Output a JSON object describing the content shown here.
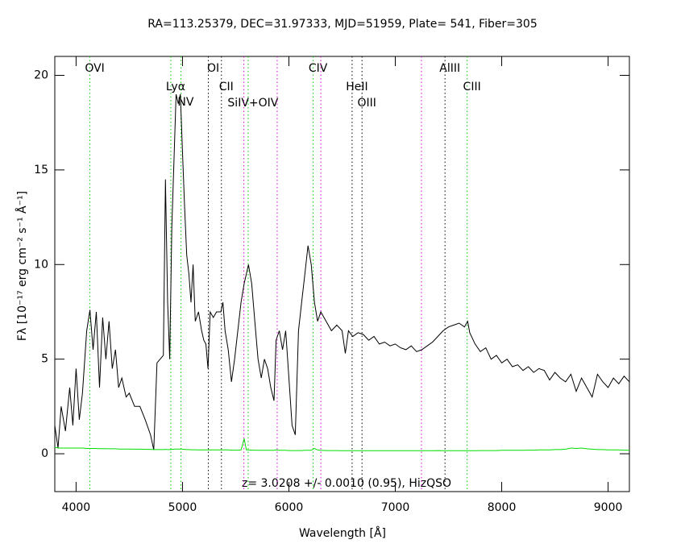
{
  "chart_data": {
    "type": "line",
    "title": "RA=113.25379, DEC=31.97333, MJD=51959, Plate=  541, Fiber=305",
    "annotation": "z=  3.0208 +/-  0.0010 (0.95), HizQSO",
    "xlabel": "Wavelength [Å]",
    "ylabel": "Fλ [10⁻¹⁷ erg cm⁻² s⁻¹ Å⁻¹]",
    "xlim": [
      3800,
      9200
    ],
    "ylim": [
      -2,
      21
    ],
    "xticks": [
      4000,
      5000,
      6000,
      7000,
      8000,
      9000
    ],
    "yticks": [
      0,
      5,
      10,
      15,
      20
    ],
    "lines": [
      {
        "label": "OVI",
        "wavelength": 4130,
        "color": "#00cc00"
      },
      {
        "label": "Lyα",
        "wavelength": 4890,
        "color": "#00cc00"
      },
      {
        "label": "NV",
        "wavelength": 4985,
        "color": "#00cc00"
      },
      {
        "label": "OI",
        "wavelength": 5243,
        "color": "#000000"
      },
      {
        "label": "CII",
        "wavelength": 5366,
        "color": "#000000"
      },
      {
        "label": "SiIV+OIV",
        "wavelength": 5617,
        "color": "#00cc00"
      },
      {
        "label": "CIV",
        "wavelength": 6228,
        "color": "#00cc00"
      },
      {
        "label": "HeII",
        "wavelength": 6594,
        "color": "#000000"
      },
      {
        "label": "OIII",
        "wavelength": 6687,
        "color": "#000000"
      },
      {
        "label": "AlIII",
        "wavelength": 7467,
        "color": "#000000"
      },
      {
        "label": "CIII",
        "wavelength": 7675,
        "color": "#00cc00"
      }
    ],
    "sky_lines": [
      5577,
      5890,
      6300,
      7246
    ],
    "sky_color": "#dd00dd",
    "x": [
      3800,
      3830,
      3860,
      3900,
      3940,
      3970,
      4000,
      4030,
      4060,
      4100,
      4130,
      4160,
      4190,
      4220,
      4250,
      4280,
      4310,
      4340,
      4370,
      4400,
      4430,
      4470,
      4500,
      4550,
      4600,
      4650,
      4700,
      4730,
      4760,
      4790,
      4820,
      4840,
      4860,
      4880,
      4900,
      4920,
      4940,
      4960,
      4980,
      5000,
      5020,
      5040,
      5060,
      5080,
      5100,
      5120,
      5150,
      5180,
      5200,
      5220,
      5240,
      5260,
      5290,
      5320,
      5360,
      5380,
      5400,
      5430,
      5460,
      5490,
      5520,
      5550,
      5580,
      5600,
      5620,
      5650,
      5680,
      5710,
      5740,
      5770,
      5800,
      5830,
      5860,
      5880,
      5910,
      5940,
      5970,
      6000,
      6030,
      6060,
      6090,
      6120,
      6150,
      6180,
      6210,
      6240,
      6270,
      6300,
      6350,
      6400,
      6450,
      6500,
      6530,
      6560,
      6600,
      6650,
      6700,
      6750,
      6800,
      6850,
      6900,
      6950,
      7000,
      7050,
      7100,
      7150,
      7200,
      7250,
      7300,
      7350,
      7400,
      7450,
      7500,
      7550,
      7600,
      7650,
      7680,
      7700,
      7750,
      7800,
      7850,
      7900,
      7950,
      8000,
      8050,
      8100,
      8150,
      8200,
      8250,
      8300,
      8350,
      8400,
      8450,
      8500,
      8550,
      8600,
      8650,
      8700,
      8750,
      8800,
      8850,
      8900,
      8950,
      9000,
      9050,
      9100,
      9150,
      9200
    ],
    "series": [
      {
        "color": "#000000",
        "values": [
          1.5,
          0.3,
          2.5,
          1.2,
          3.5,
          1.5,
          4.5,
          1.8,
          3.2,
          6.5,
          7.6,
          5.5,
          7.5,
          3.5,
          7.2,
          5.0,
          7.0,
          4.5,
          5.5,
          3.5,
          4.0,
          3.0,
          3.2,
          2.5,
          2.5,
          1.8,
          1.0,
          0.2,
          4.8,
          5.0,
          5.2,
          14.5,
          8.0,
          5.0,
          12.0,
          15.5,
          19.0,
          18.5,
          19.0,
          16.0,
          13.0,
          10.5,
          9.5,
          8.0,
          10.0,
          7.0,
          7.5,
          6.5,
          6.0,
          5.8,
          4.5,
          7.5,
          7.2,
          7.5,
          7.5,
          8.0,
          6.5,
          5.5,
          3.8,
          5.0,
          6.5,
          8.0,
          9.0,
          9.5,
          10.0,
          9.0,
          7.0,
          5.0,
          4.0,
          5.0,
          4.5,
          3.5,
          2.8,
          6.0,
          6.5,
          5.5,
          6.5,
          4.0,
          1.5,
          1.0,
          6.5,
          8.0,
          9.5,
          11.0,
          10.0,
          8.0,
          7.0,
          7.5,
          7.0,
          6.5,
          6.8,
          6.5,
          5.3,
          6.5,
          6.2,
          6.4,
          6.3,
          6.0,
          6.2,
          5.8,
          5.9,
          5.7,
          5.8,
          5.6,
          5.5,
          5.7,
          5.4,
          5.5,
          5.7,
          5.9,
          6.2,
          6.5,
          6.7,
          6.8,
          6.9,
          6.7,
          7.0,
          6.4,
          5.8,
          5.4,
          5.6,
          5.0,
          5.2,
          4.8,
          5.0,
          4.6,
          4.7,
          4.4,
          4.6,
          4.3,
          4.5,
          4.4,
          3.9,
          4.3,
          4.0,
          3.8,
          4.2,
          3.3,
          4.0,
          3.5,
          3.0,
          4.2,
          3.8,
          3.5,
          4.0,
          3.7,
          4.1,
          3.8
        ]
      },
      {
        "color": "#00dd00",
        "values": [
          0.35,
          0.3,
          0.3,
          0.3,
          0.3,
          0.3,
          0.3,
          0.3,
          0.3,
          0.28,
          0.28,
          0.28,
          0.28,
          0.27,
          0.27,
          0.27,
          0.26,
          0.26,
          0.26,
          0.25,
          0.25,
          0.25,
          0.25,
          0.24,
          0.24,
          0.23,
          0.23,
          0.22,
          0.22,
          0.22,
          0.22,
          0.23,
          0.22,
          0.22,
          0.23,
          0.24,
          0.25,
          0.25,
          0.25,
          0.24,
          0.23,
          0.22,
          0.22,
          0.21,
          0.21,
          0.21,
          0.2,
          0.2,
          0.2,
          0.2,
          0.2,
          0.2,
          0.2,
          0.2,
          0.2,
          0.2,
          0.2,
          0.2,
          0.19,
          0.19,
          0.19,
          0.2,
          0.8,
          0.2,
          0.2,
          0.19,
          0.19,
          0.18,
          0.18,
          0.18,
          0.18,
          0.18,
          0.18,
          0.2,
          0.18,
          0.18,
          0.18,
          0.17,
          0.17,
          0.17,
          0.17,
          0.17,
          0.18,
          0.18,
          0.18,
          0.28,
          0.2,
          0.18,
          0.17,
          0.17,
          0.17,
          0.16,
          0.16,
          0.16,
          0.16,
          0.16,
          0.16,
          0.16,
          0.16,
          0.16,
          0.16,
          0.16,
          0.16,
          0.16,
          0.16,
          0.16,
          0.16,
          0.16,
          0.16,
          0.16,
          0.17,
          0.16,
          0.16,
          0.16,
          0.16,
          0.16,
          0.16,
          0.16,
          0.16,
          0.17,
          0.17,
          0.17,
          0.17,
          0.18,
          0.18,
          0.18,
          0.18,
          0.18,
          0.19,
          0.19,
          0.2,
          0.2,
          0.2,
          0.22,
          0.22,
          0.24,
          0.3,
          0.28,
          0.3,
          0.26,
          0.24,
          0.22,
          0.22,
          0.2,
          0.2,
          0.2,
          0.19,
          0.18
        ]
      }
    ]
  }
}
